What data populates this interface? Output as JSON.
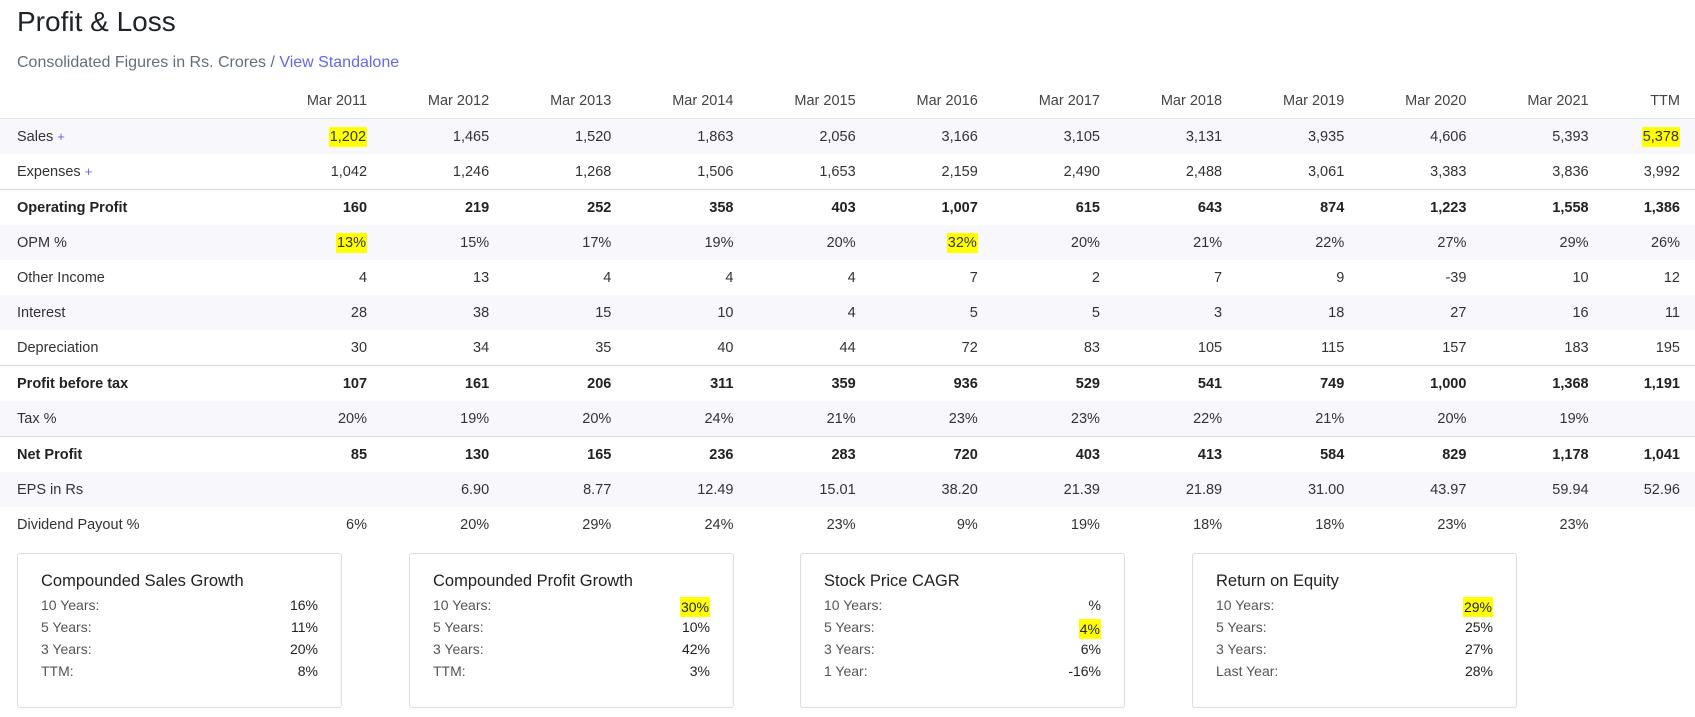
{
  "header": {
    "title": "Profit & Loss",
    "subtitle_prefix": "Consolidated Figures in Rs. Crores / ",
    "standalone_link": "View Standalone"
  },
  "colors": {
    "accent": "#6366f1",
    "highlight": "#ffff00",
    "stripe": "#f7f7fc"
  },
  "table": {
    "columns": [
      "",
      "Mar 2011",
      "Mar 2012",
      "Mar 2013",
      "Mar 2014",
      "Mar 2015",
      "Mar 2016",
      "Mar 2017",
      "Mar 2018",
      "Mar 2019",
      "Mar 2020",
      "Mar 2021",
      "TTM"
    ],
    "rows": [
      {
        "label": "Sales",
        "expand": "+",
        "stripe": true,
        "strong": false,
        "topline": false,
        "values": [
          "1,202",
          "1,465",
          "1,520",
          "1,863",
          "2,056",
          "3,166",
          "3,105",
          "3,131",
          "3,935",
          "4,606",
          "5,393",
          "5,378"
        ],
        "highlight": [
          0,
          11
        ]
      },
      {
        "label": "Expenses",
        "expand": "+",
        "stripe": false,
        "strong": false,
        "topline": false,
        "values": [
          "1,042",
          "1,246",
          "1,268",
          "1,506",
          "1,653",
          "2,159",
          "2,490",
          "2,488",
          "3,061",
          "3,383",
          "3,836",
          "3,992"
        ],
        "highlight": []
      },
      {
        "label": "Operating Profit",
        "expand": "",
        "stripe": false,
        "strong": true,
        "topline": true,
        "values": [
          "160",
          "219",
          "252",
          "358",
          "403",
          "1,007",
          "615",
          "643",
          "874",
          "1,223",
          "1,558",
          "1,386"
        ],
        "highlight": []
      },
      {
        "label": "OPM %",
        "expand": "",
        "stripe": true,
        "strong": false,
        "topline": false,
        "values": [
          "13%",
          "15%",
          "17%",
          "19%",
          "20%",
          "32%",
          "20%",
          "21%",
          "22%",
          "27%",
          "29%",
          "26%"
        ],
        "highlight": [
          0,
          5
        ]
      },
      {
        "label": "Other Income",
        "expand": "",
        "stripe": false,
        "strong": false,
        "topline": false,
        "values": [
          "4",
          "13",
          "4",
          "4",
          "4",
          "7",
          "2",
          "7",
          "9",
          "-39",
          "10",
          "12"
        ],
        "highlight": []
      },
      {
        "label": "Interest",
        "expand": "",
        "stripe": true,
        "strong": false,
        "topline": false,
        "values": [
          "28",
          "38",
          "15",
          "10",
          "4",
          "5",
          "5",
          "3",
          "18",
          "27",
          "16",
          "11"
        ],
        "highlight": []
      },
      {
        "label": "Depreciation",
        "expand": "",
        "stripe": false,
        "strong": false,
        "topline": false,
        "values": [
          "30",
          "34",
          "35",
          "40",
          "44",
          "72",
          "83",
          "105",
          "115",
          "157",
          "183",
          "195"
        ],
        "highlight": []
      },
      {
        "label": "Profit before tax",
        "expand": "",
        "stripe": false,
        "strong": true,
        "topline": true,
        "values": [
          "107",
          "161",
          "206",
          "311",
          "359",
          "936",
          "529",
          "541",
          "749",
          "1,000",
          "1,368",
          "1,191"
        ],
        "highlight": []
      },
      {
        "label": "Tax %",
        "expand": "",
        "stripe": true,
        "strong": false,
        "topline": false,
        "values": [
          "20%",
          "19%",
          "20%",
          "24%",
          "21%",
          "23%",
          "23%",
          "22%",
          "21%",
          "20%",
          "19%",
          ""
        ],
        "highlight": []
      },
      {
        "label": "Net Profit",
        "expand": "",
        "stripe": false,
        "strong": true,
        "topline": true,
        "values": [
          "85",
          "130",
          "165",
          "236",
          "283",
          "720",
          "403",
          "413",
          "584",
          "829",
          "1,178",
          "1,041"
        ],
        "highlight": []
      },
      {
        "label": "EPS in Rs",
        "expand": "",
        "stripe": true,
        "strong": false,
        "topline": false,
        "values": [
          "",
          "6.90",
          "8.77",
          "12.49",
          "15.01",
          "38.20",
          "21.39",
          "21.89",
          "31.00",
          "43.97",
          "59.94",
          "52.96"
        ],
        "highlight": []
      },
      {
        "label": "Dividend Payout %",
        "expand": "",
        "stripe": false,
        "strong": false,
        "topline": false,
        "values": [
          "6%",
          "20%",
          "29%",
          "24%",
          "23%",
          "9%",
          "19%",
          "18%",
          "18%",
          "23%",
          "23%",
          ""
        ],
        "highlight": []
      }
    ]
  },
  "cards": [
    {
      "title": "Compounded Sales Growth",
      "rows": [
        {
          "k": "10 Years:",
          "v": "16%",
          "hl": false
        },
        {
          "k": "5 Years:",
          "v": "11%",
          "hl": false
        },
        {
          "k": "3 Years:",
          "v": "20%",
          "hl": false
        },
        {
          "k": "TTM:",
          "v": "8%",
          "hl": false
        }
      ]
    },
    {
      "title": "Compounded Profit Growth",
      "rows": [
        {
          "k": "10 Years:",
          "v": "30%",
          "hl": true
        },
        {
          "k": "5 Years:",
          "v": "10%",
          "hl": false
        },
        {
          "k": "3 Years:",
          "v": "42%",
          "hl": false
        },
        {
          "k": "TTM:",
          "v": "3%",
          "hl": false
        }
      ]
    },
    {
      "title": "Stock Price CAGR",
      "rows": [
        {
          "k": "10 Years:",
          "v": "%",
          "hl": false
        },
        {
          "k": "5 Years:",
          "v": "4%",
          "hl": true
        },
        {
          "k": "3 Years:",
          "v": "6%",
          "hl": false
        },
        {
          "k": "1 Year:",
          "v": "-16%",
          "hl": false
        }
      ]
    },
    {
      "title": "Return on Equity",
      "rows": [
        {
          "k": "10 Years:",
          "v": "29%",
          "hl": true
        },
        {
          "k": "5 Years:",
          "v": "25%",
          "hl": false
        },
        {
          "k": "3 Years:",
          "v": "27%",
          "hl": false
        },
        {
          "k": "Last Year:",
          "v": "28%",
          "hl": false
        }
      ]
    }
  ]
}
